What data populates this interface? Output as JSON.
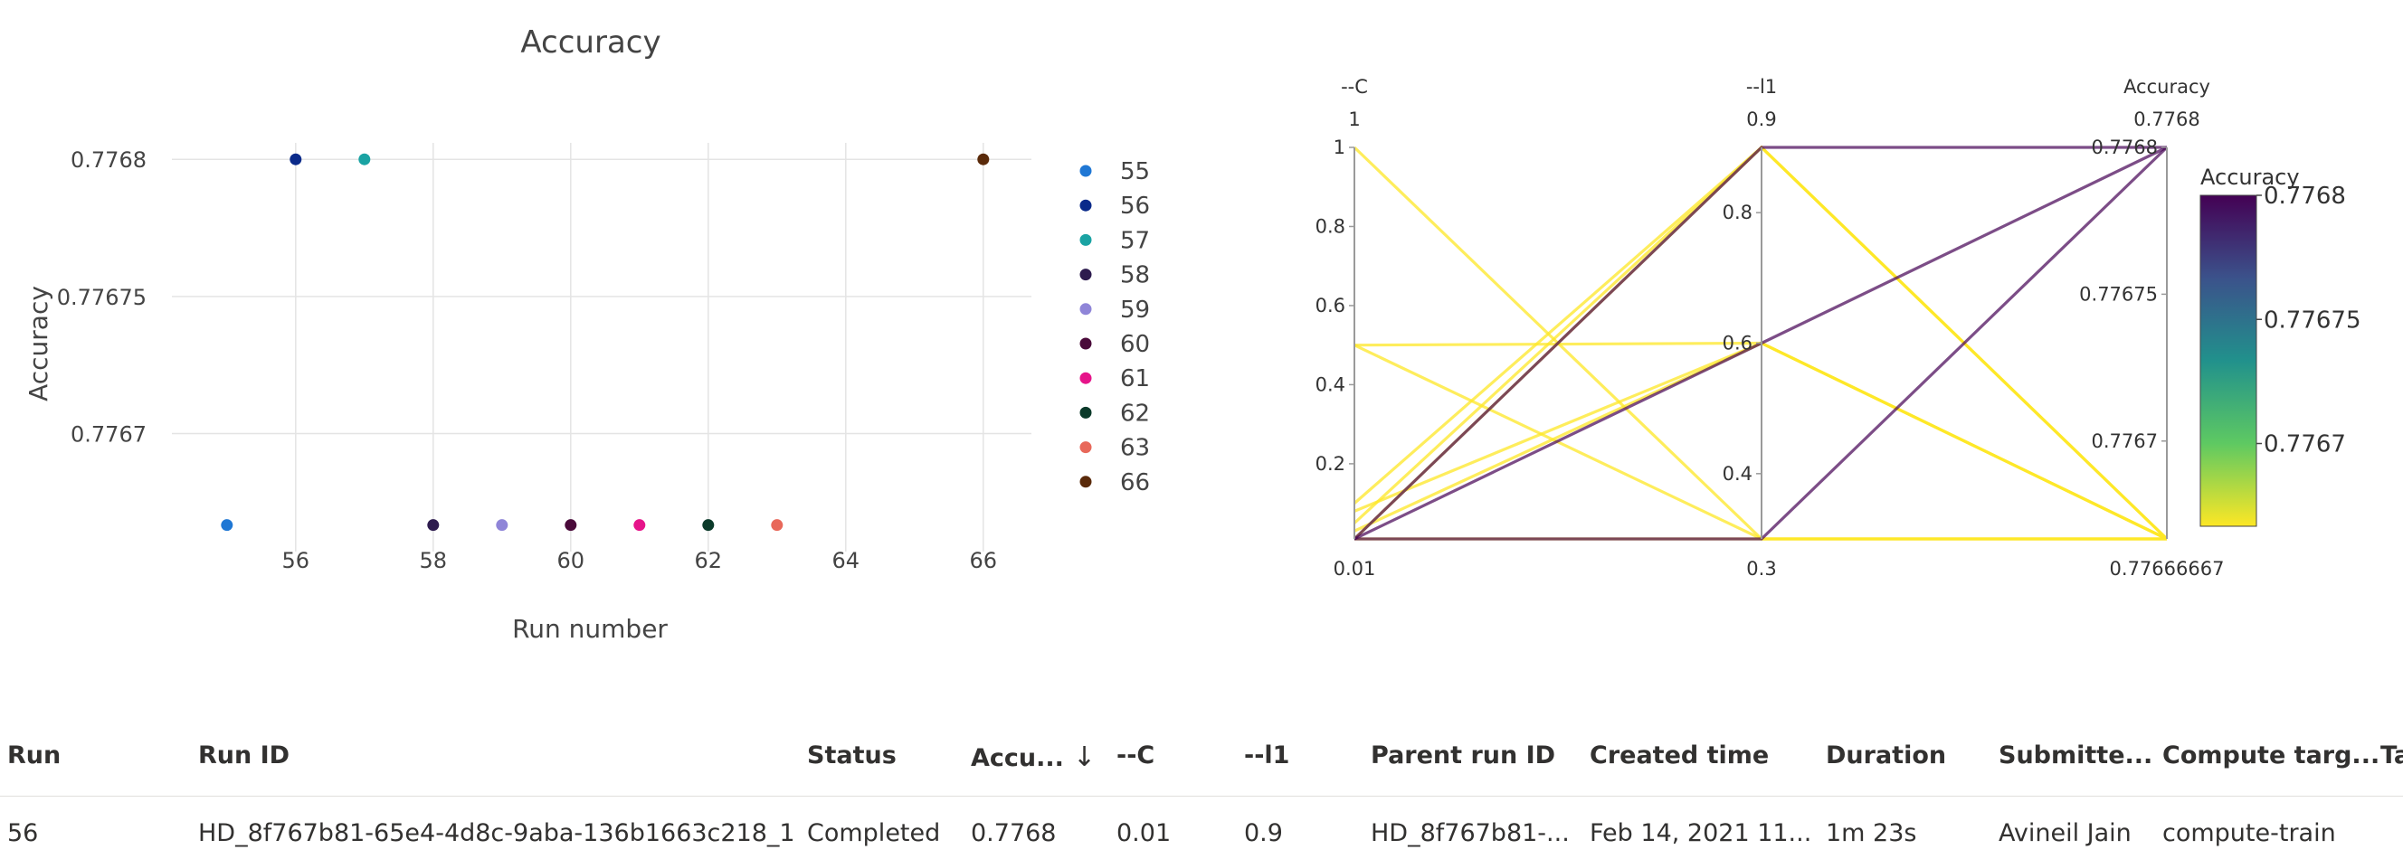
{
  "scatter": {
    "title": "Accuracy",
    "xlabel": "Run number",
    "ylabel": "Accuracy",
    "legend_placement": "right",
    "grid": true
  },
  "parcoords": {
    "colorbar_title": "Accuracy",
    "colorbar_ticks": [
      "0.7768",
      "0.77675",
      "0.7767"
    ],
    "colorscale": [
      "#fde725",
      "#5ec962",
      "#21918c",
      "#3b528b",
      "#440154"
    ],
    "axes": [
      {
        "name": "--C",
        "top_label": "1",
        "bottom_label": "0.01",
        "ticks": [
          {
            "label": "1",
            "v": 1
          },
          {
            "label": "0.8",
            "v": 0.8
          },
          {
            "label": "0.6",
            "v": 0.6
          },
          {
            "label": "0.4",
            "v": 0.4
          },
          {
            "label": "0.2",
            "v": 0.2
          }
        ],
        "range": [
          0.01,
          1
        ]
      },
      {
        "name": "--l1",
        "top_label": "0.9",
        "bottom_label": "0.3",
        "ticks": [
          {
            "label": "0.8",
            "v": 0.8
          },
          {
            "label": "0.6",
            "v": 0.6
          },
          {
            "label": "0.4",
            "v": 0.4
          }
        ],
        "range": [
          0.3,
          0.9
        ]
      },
      {
        "name": "Accuracy",
        "top_label": "0.7768",
        "bottom_label": "0.77666667",
        "ticks": [
          {
            "label": "0.7768",
            "v": 0.7768
          },
          {
            "label": "0.77675",
            "v": 0.77675
          },
          {
            "label": "0.7767",
            "v": 0.7767
          }
        ],
        "range": [
          0.77666667,
          0.7768
        ]
      }
    ],
    "lines": [
      {
        "c": 0.01,
        "l1": 0.9,
        "acc": 0.7768
      },
      {
        "c": 0.01,
        "l1": 0.6,
        "acc": 0.7768
      },
      {
        "c": 0.01,
        "l1": 0.3,
        "acc": 0.7768
      },
      {
        "c": 1.0,
        "l1": 0.3,
        "acc": 0.77666667
      },
      {
        "c": 0.5,
        "l1": 0.3,
        "acc": 0.77666667
      },
      {
        "c": 0.5,
        "l1": 0.6,
        "acc": 0.77666667
      },
      {
        "c": 0.1,
        "l1": 0.9,
        "acc": 0.77666667
      },
      {
        "c": 0.05,
        "l1": 0.9,
        "acc": 0.77666667
      },
      {
        "c": 0.08,
        "l1": 0.6,
        "acc": 0.77666667
      },
      {
        "c": 0.03,
        "l1": 0.6,
        "acc": 0.77666667
      },
      {
        "c": 0.01,
        "l1": 0.3,
        "acc": 0.77666667
      },
      {
        "c": 0.01,
        "l1": 0.9,
        "acc": 0.77666667
      }
    ]
  },
  "chart_data": [
    {
      "type": "scatter",
      "title": "Accuracy",
      "xlabel": "Run number",
      "ylabel": "Accuracy",
      "xlim": [
        54.2,
        66.7
      ],
      "ylim": [
        0.776657,
        0.776806
      ],
      "x_ticks": [
        "56",
        "58",
        "60",
        "62",
        "64",
        "66"
      ],
      "y_ticks": [
        "0.7768",
        "0.77675",
        "0.7767"
      ],
      "series": [
        {
          "name": "55",
          "color": "#1f77d4",
          "x": [
            55
          ],
          "y": [
            0.77666667
          ]
        },
        {
          "name": "56",
          "color": "#0a2a8a",
          "x": [
            56
          ],
          "y": [
            0.7768
          ]
        },
        {
          "name": "57",
          "color": "#1aa3a3",
          "x": [
            57
          ],
          "y": [
            0.7768
          ]
        },
        {
          "name": "58",
          "color": "#2d1b4e",
          "x": [
            58
          ],
          "y": [
            0.77666667
          ]
        },
        {
          "name": "59",
          "color": "#8f85d8",
          "x": [
            59
          ],
          "y": [
            0.77666667
          ]
        },
        {
          "name": "60",
          "color": "#4a0a3a",
          "x": [
            60
          ],
          "y": [
            0.77666667
          ]
        },
        {
          "name": "61",
          "color": "#e6148a",
          "x": [
            61
          ],
          "y": [
            0.77666667
          ]
        },
        {
          "name": "62",
          "color": "#0b3a2a",
          "x": [
            62
          ],
          "y": [
            0.77666667
          ]
        },
        {
          "name": "63",
          "color": "#e8685a",
          "x": [
            63
          ],
          "y": [
            0.77666667
          ]
        },
        {
          "name": "66",
          "color": "#5a2a0a",
          "x": [
            66
          ],
          "y": [
            0.7768
          ]
        }
      ]
    }
  ],
  "table": {
    "headers": [
      "Run",
      "Run ID",
      "Status",
      "Accu...",
      "--C",
      "--l1",
      "Parent run ID",
      "Created time",
      "Duration",
      "Submitte...",
      "Compute targ...",
      "Ta"
    ],
    "sort_indicator": "↓",
    "rows": [
      {
        "run": "56",
        "run_id": "HD_8f767b81-65e4-4d8c-9aba-136b1663c218_1",
        "status": "Completed",
        "accuracy": "0.7768",
        "c": "0.01",
        "l1": "0.9",
        "parent_run_id": "HD_8f767b81-...",
        "created": "Feb 14, 2021 11...",
        "duration": "1m 23s",
        "submitted_by": "Avineil Jain",
        "compute_target": "compute-train"
      }
    ]
  }
}
